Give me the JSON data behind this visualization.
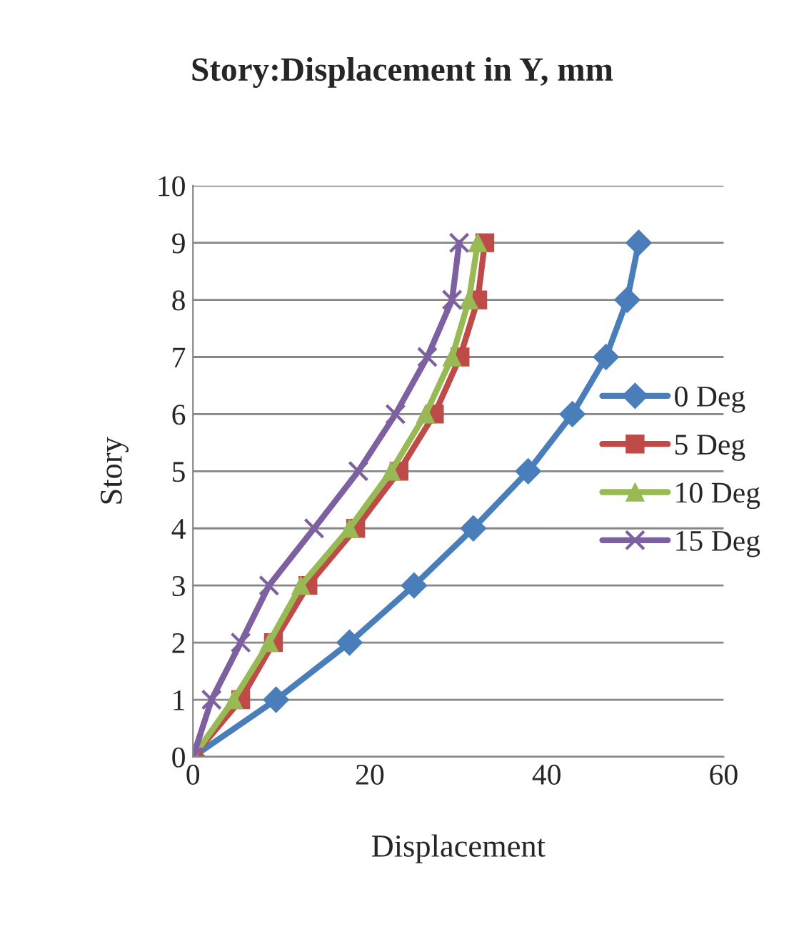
{
  "chart_data": {
    "type": "line",
    "title": "Story:Displacement in Y, mm",
    "xlabel": "Displacement",
    "ylabel": "Story",
    "xlim": [
      0,
      60
    ],
    "xticks": [
      0,
      20,
      40,
      60
    ],
    "ylim": [
      0,
      10
    ],
    "yticks": [
      0,
      1,
      2,
      3,
      4,
      5,
      6,
      7,
      8,
      9,
      10
    ],
    "grid": "y",
    "legend": "right",
    "line_style": "solid",
    "series": [
      {
        "name": "0 Deg",
        "color": "#4a7ebb",
        "marker": "diamond",
        "x": [
          0,
          9.4,
          17.7,
          25,
          31.7,
          37.9,
          42.9,
          46.7,
          49.1,
          50.4
        ],
        "values": [
          0,
          1,
          2,
          3,
          4,
          5,
          6,
          7,
          8,
          9
        ]
      },
      {
        "name": "5 Deg",
        "color": "#be4b48",
        "marker": "square",
        "x": [
          0,
          5.4,
          9.1,
          13,
          18.4,
          23.3,
          27.3,
          30.2,
          32.2,
          33.0
        ],
        "values": [
          0,
          1,
          2,
          3,
          4,
          5,
          6,
          7,
          8,
          9
        ]
      },
      {
        "name": "10 Deg",
        "color": "#98b954",
        "marker": "triangle",
        "x": [
          0,
          4.6,
          8.6,
          12.2,
          17.7,
          22.4,
          26.3,
          29.3,
          31.2,
          32.2
        ],
        "values": [
          0,
          1,
          2,
          3,
          4,
          5,
          6,
          7,
          8,
          9
        ]
      },
      {
        "name": "15 Deg",
        "color": "#7d60a0",
        "marker": "cross",
        "x": [
          0,
          2.1,
          5.4,
          8.6,
          13.7,
          18.7,
          22.9,
          26.5,
          29.3,
          30.1
        ],
        "values": [
          0,
          1,
          2,
          3,
          4,
          5,
          6,
          7,
          8,
          9
        ]
      }
    ]
  }
}
